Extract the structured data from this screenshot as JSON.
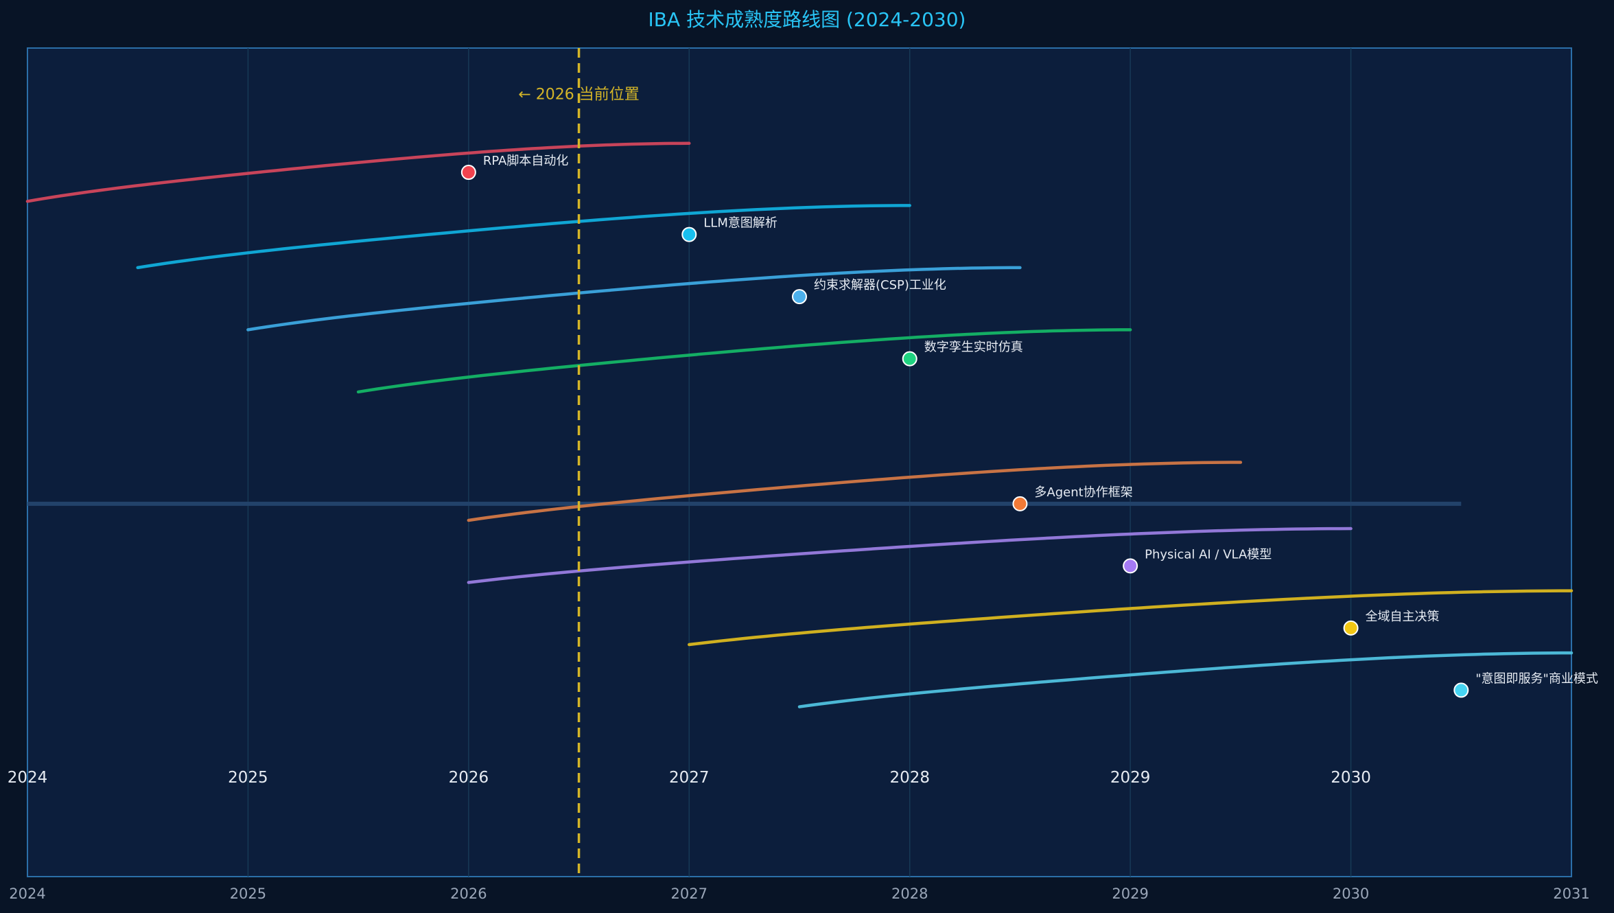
{
  "colors": {
    "background": "#081426",
    "plot_background": "#0c1e3c",
    "plot_border": "#2b6fa8",
    "grid": "#173a56",
    "title": "#29c5f6",
    "tick_text": "#9aa6b8",
    "year_text": "#e6ebf2",
    "label_text": "#e6ebf2",
    "current_line": "#d4b528",
    "midline": "#22426a"
  },
  "chart_data": {
    "type": "line",
    "title": "IBA 技术成熟度路线图 (2024-2030)",
    "xlim": [
      2024,
      2031
    ],
    "ylim": [
      0,
      10
    ],
    "x_ticks": [
      2024,
      2025,
      2026,
      2027,
      2028,
      2029,
      2030,
      2031
    ],
    "year_labels": [
      2024,
      2025,
      2026,
      2027,
      2028,
      2029,
      2030
    ],
    "year_label_y": 1.2,
    "grid": true,
    "current_marker": {
      "x": 2026.5,
      "label": "← 2026 当前位置",
      "label_y": 9.45
    },
    "midline": {
      "x_start": 2024,
      "x_end": 2030.5,
      "y": 4.5
    },
    "series": [
      {
        "label": "RPA脚本自动化",
        "color": "#c8445a",
        "marker_color": "#f0424e",
        "marker": [
          2026,
          8.5
        ],
        "curve_start": [
          2024,
          8.15
        ],
        "curve_end": [
          2027,
          8.85
        ]
      },
      {
        "label": "LLM意图解析",
        "color": "#10a6d4",
        "marker_color": "#18bfef",
        "marker": [
          2027,
          7.75
        ],
        "curve_start": [
          2024.5,
          7.35
        ],
        "curve_end": [
          2028,
          8.1
        ]
      },
      {
        "label": "约束求解器(CSP)工业化",
        "color": "#3aa0d8",
        "marker_color": "#4cb0ec",
        "marker": [
          2027.5,
          7.0
        ],
        "curve_start": [
          2025,
          6.6
        ],
        "curve_end": [
          2028.5,
          7.35
        ]
      },
      {
        "label": "数字孪生实时仿真",
        "color": "#14ae64",
        "marker_color": "#1fd280",
        "marker": [
          2028,
          6.25
        ],
        "curve_start": [
          2025.5,
          5.85
        ],
        "curve_end": [
          2029,
          6.6
        ]
      },
      {
        "label": "多Agent协作框架",
        "color": "#c87345",
        "marker_color": "#f27a36",
        "marker": [
          2028.5,
          4.5
        ],
        "curve_start": [
          2026,
          4.3
        ],
        "curve_end": [
          2029.5,
          5.0
        ]
      },
      {
        "label": "Physical AI / VLA模型",
        "color": "#9278d8",
        "marker_color": "#a57af5",
        "marker": [
          2029,
          3.75
        ],
        "curve_start": [
          2026,
          3.55
        ],
        "curve_end": [
          2030,
          4.2
        ]
      },
      {
        "label": "全域自主决策",
        "color": "#d0b020",
        "marker_color": "#f2c714",
        "marker": [
          2030,
          3.0
        ],
        "curve_start": [
          2027,
          2.8
        ],
        "curve_end": [
          2031,
          3.45
        ]
      },
      {
        "label": "\"意图即服务\"商业模式",
        "color": "#4cb8d6",
        "marker_color": "#46d4f2",
        "marker": [
          2030.5,
          2.25
        ],
        "curve_start": [
          2027.5,
          2.05
        ],
        "curve_end": [
          2031,
          2.7
        ]
      }
    ]
  }
}
